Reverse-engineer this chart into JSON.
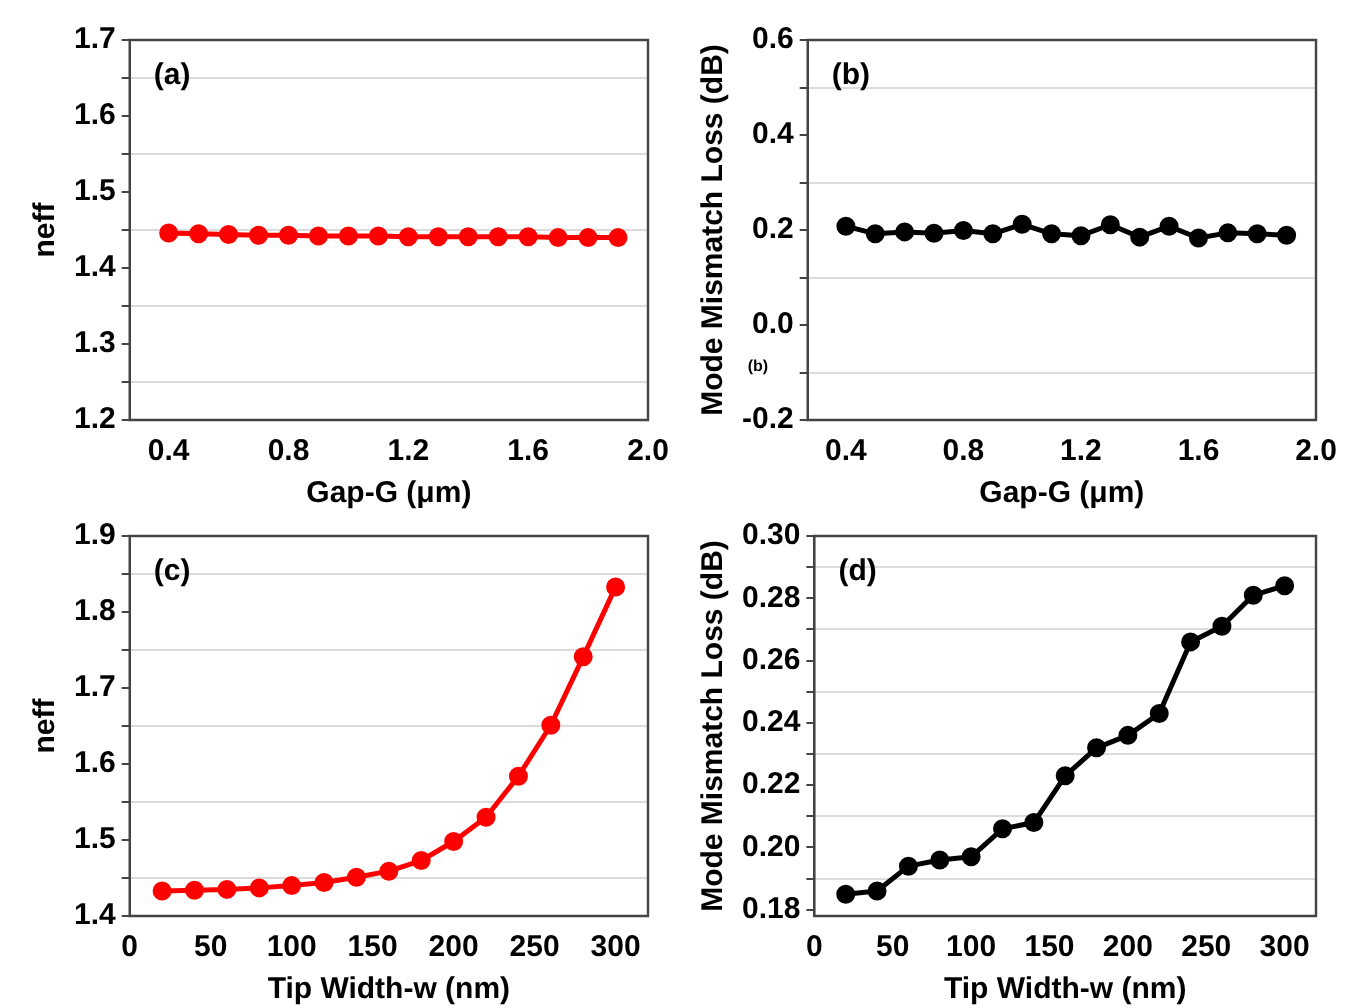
{
  "chart_data": [
    {
      "type": "line",
      "xlabel": "Gap-G (μm)",
      "ylabel": "neff",
      "annotations": [
        "(a)"
      ],
      "grid": "y",
      "marker": "circle",
      "line_style": "solid",
      "x": [
        0.4,
        0.5,
        0.6,
        0.7,
        0.8,
        0.9,
        1.0,
        1.1,
        1.2,
        1.3,
        1.4,
        1.5,
        1.6,
        1.7,
        1.8,
        1.9
      ],
      "series": [
        {
          "color": "#ff0000",
          "values": [
            1.446,
            1.445,
            1.444,
            1.443,
            1.443,
            1.442,
            1.442,
            1.442,
            1.441,
            1.441,
            1.441,
            1.441,
            1.441,
            1.44,
            1.44,
            1.44
          ]
        }
      ],
      "xlim": [
        0.27,
        2.0
      ],
      "xticks": [
        0.4,
        0.8,
        1.2,
        1.6,
        {
          "value": 2,
          "label": "2.0"
        }
      ],
      "ylim": [
        1.2,
        1.7
      ],
      "yticks": [
        1.2,
        {
          "value": 1.25,
          "label": null
        },
        1.3,
        {
          "value": 1.35,
          "label": null
        },
        1.4,
        {
          "value": 1.45,
          "label": null
        },
        1.5,
        {
          "value": 1.55,
          "label": null
        },
        1.6,
        {
          "value": 1.65,
          "label": null
        },
        1.7
      ]
    },
    {
      "type": "line",
      "xlabel": "Gap-G (μm)",
      "ylabel": "Mode Mismatch Loss (dB)",
      "annotations": [
        "(b)",
        "(b)"
      ],
      "grid": "y",
      "marker": "circle",
      "line_style": "solid",
      "x": [
        0.4,
        0.5,
        0.6,
        0.7,
        0.8,
        0.9,
        1.0,
        1.1,
        1.2,
        1.3,
        1.4,
        1.5,
        1.6,
        1.7,
        1.8,
        1.9
      ],
      "series": [
        {
          "color": "#000000",
          "values": [
            0.208,
            0.192,
            0.196,
            0.193,
            0.199,
            0.192,
            0.212,
            0.192,
            0.188,
            0.211,
            0.185,
            0.208,
            0.183,
            0.194,
            0.192,
            0.189
          ]
        }
      ],
      "xlim": [
        0.27,
        2.0
      ],
      "xticks": [
        0.4,
        0.8,
        1.2,
        1.6,
        {
          "value": 2,
          "label": "2.0"
        }
      ],
      "ylim": [
        -0.2,
        0.6
      ],
      "yticks": [
        -0.2,
        {
          "value": -0.1,
          "label": null
        },
        {
          "value": 0,
          "label": "0.0"
        },
        {
          "value": 0.1,
          "label": null
        },
        0.2,
        {
          "value": 0.3,
          "label": null
        },
        0.4,
        {
          "value": 0.5,
          "label": null
        },
        0.6
      ]
    },
    {
      "type": "line",
      "xlabel": "Tip Width-w (nm)",
      "ylabel": "neff",
      "annotations": [
        "(c)"
      ],
      "grid": "y",
      "marker": "circle",
      "line_style": "solid",
      "x": [
        20,
        40,
        60,
        80,
        100,
        120,
        140,
        160,
        180,
        200,
        220,
        240,
        260,
        280,
        300
      ],
      "series": [
        {
          "color": "#ff0000",
          "values": [
            1.433,
            1.434,
            1.435,
            1.437,
            1.44,
            1.444,
            1.451,
            1.459,
            1.473,
            1.498,
            1.53,
            1.584,
            1.651,
            1.741,
            1.833
          ]
        }
      ],
      "xlim": [
        0,
        320
      ],
      "xticks": [
        0,
        50,
        100,
        150,
        200,
        250,
        300
      ],
      "ylim": [
        1.4,
        1.9
      ],
      "yticks": [
        1.4,
        {
          "value": 1.45,
          "label": null
        },
        1.5,
        {
          "value": 1.55,
          "label": null
        },
        1.6,
        {
          "value": 1.65,
          "label": null
        },
        1.7,
        {
          "value": 1.75,
          "label": null
        },
        1.8,
        {
          "value": 1.85,
          "label": null
        },
        1.9
      ]
    },
    {
      "type": "line",
      "xlabel": "Tip Width-w (nm)",
      "ylabel": "Mode Mismatch Loss (dB)",
      "annotations": [
        "(d)"
      ],
      "grid": "y",
      "marker": "circle",
      "line_style": "solid",
      "x": [
        20,
        40,
        60,
        80,
        100,
        120,
        140,
        160,
        180,
        200,
        220,
        240,
        260,
        280,
        300
      ],
      "series": [
        {
          "color": "#000000",
          "values": [
            0.185,
            0.186,
            0.194,
            0.196,
            0.197,
            0.206,
            0.208,
            0.223,
            0.232,
            0.236,
            0.243,
            0.266,
            0.271,
            0.281,
            0.284
          ]
        }
      ],
      "xlim": [
        0,
        320
      ],
      "xticks": [
        0,
        50,
        100,
        150,
        200,
        250,
        300
      ],
      "ylim": [
        0.178,
        0.3
      ],
      "yticks": [
        0.18,
        {
          "value": 0.19,
          "label": null
        },
        {
          "value": 0.2,
          "label": "0.20"
        },
        {
          "value": 0.21,
          "label": null
        },
        0.22,
        {
          "value": 0.23,
          "label": null
        },
        0.24,
        {
          "value": 0.25,
          "label": null
        },
        0.26,
        {
          "value": 0.27,
          "label": null
        },
        0.28,
        {
          "value": 0.29,
          "label": null
        },
        {
          "value": 0.3,
          "label": "0.30"
        }
      ]
    }
  ]
}
